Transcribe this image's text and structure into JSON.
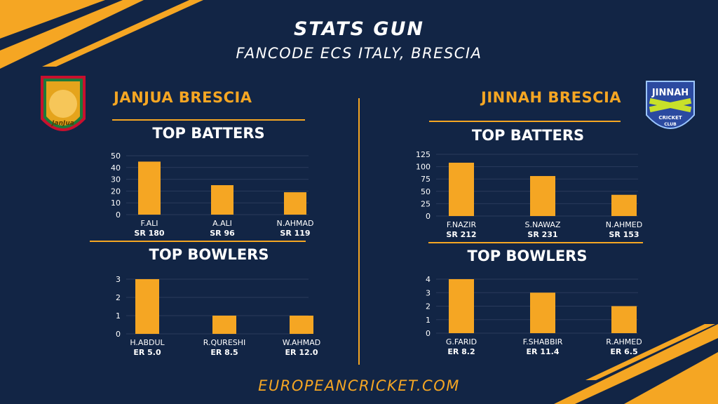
{
  "header": {
    "title": "STATS GUN",
    "subtitle": "FANCODE ECS ITALY, BRESCIA"
  },
  "footer": {
    "text": "EUROPEANCRICKET.COM"
  },
  "colors": {
    "background": "#122545",
    "accent": "#f5a623",
    "bar": "#f5a623",
    "text": "#ffffff",
    "grid": "#2a3b5c"
  },
  "left_team": {
    "name": "JANJUA BRESCIA",
    "logo_text": "JanJua",
    "batters_title": "TOP BATTERS",
    "bowlers_title": "TOP BOWLERS"
  },
  "right_team": {
    "name": "JINNAH BRESCIA",
    "logo_text_top": "JINNAH",
    "logo_text_bottom1": "CRICKET",
    "logo_text_bottom2": "CLUB",
    "batters_title": "TOP BATTERS",
    "bowlers_title": "TOP BOWLERS"
  },
  "chart_data": [
    {
      "id": "left-batters",
      "type": "bar",
      "categories": [
        "F.ALI",
        "A.ALI",
        "N.AHMAD"
      ],
      "values": [
        45,
        25,
        19
      ],
      "sublabels": [
        "SR 180",
        "SR 96",
        "SR 119"
      ],
      "ylim": [
        0,
        50
      ],
      "yticks": [
        0,
        10,
        20,
        30,
        40,
        50
      ],
      "grid": true
    },
    {
      "id": "left-bowlers",
      "type": "bar",
      "categories": [
        "H.ABDUL",
        "R.QURESHI",
        "W.AHMAD"
      ],
      "values": [
        3,
        1,
        1
      ],
      "sublabels": [
        "ER 5.0",
        "ER 8.5",
        "ER 12.0"
      ],
      "ylim": [
        0,
        3
      ],
      "yticks": [
        0,
        1,
        2,
        3
      ],
      "grid": true
    },
    {
      "id": "right-batters",
      "type": "bar",
      "categories": [
        "F.NAZIR",
        "S.NAWAZ",
        "N.AHMED"
      ],
      "values": [
        108,
        81,
        43
      ],
      "sublabels": [
        "SR 212",
        "SR 231",
        "SR 153"
      ],
      "ylim": [
        0,
        125
      ],
      "yticks": [
        0,
        25,
        50,
        75,
        100,
        125
      ],
      "grid": true
    },
    {
      "id": "right-bowlers",
      "type": "bar",
      "categories": [
        "G.FARID",
        "F.SHABBIR",
        "R.AHMED"
      ],
      "values": [
        4,
        3,
        2
      ],
      "sublabels": [
        "ER 8.2",
        "ER 11.4",
        "ER 6.5"
      ],
      "ylim": [
        0,
        4
      ],
      "yticks": [
        0,
        1,
        2,
        3,
        4
      ],
      "grid": true
    }
  ]
}
